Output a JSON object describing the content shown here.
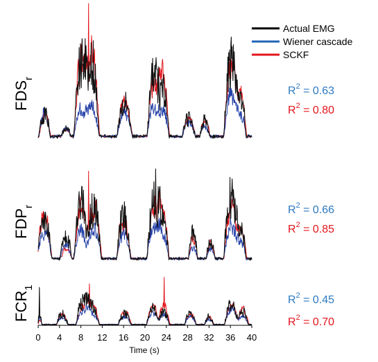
{
  "chart_data": {
    "type": "line",
    "xlabel": "Time (s)",
    "xlim": [
      0,
      40
    ],
    "xticks": [
      "0",
      "4",
      "8",
      "12",
      "16",
      "20",
      "24",
      "28",
      "32",
      "36",
      "40"
    ],
    "legend": {
      "placement": "top-right",
      "entries": [
        {
          "name": "Actual EMG",
          "color": "#000000"
        },
        {
          "name": "Wiener cascade",
          "color": "#1f63b8"
        },
        {
          "name": "SCKF",
          "color": "#e3141b"
        }
      ]
    },
    "panels": [
      {
        "muscle": "FDS",
        "sub": "r",
        "r2": [
          {
            "model": "Wiener cascade",
            "label": "R",
            "sup": "2",
            "text": " = 0.63",
            "color": "#2b79c2"
          },
          {
            "model": "SCKF",
            "label": "R",
            "sup": "2",
            "text": " = 0.80",
            "color": "#e3141b"
          }
        ],
        "ylim": [
          0,
          1
        ],
        "bursts": [
          {
            "center": 1.2,
            "width": 0.9,
            "actual": 0.16,
            "wiener": 0.17,
            "sckf": 0.15
          },
          {
            "center": 5.2,
            "width": 0.8,
            "actual": 0.06,
            "wiener": 0.06,
            "sckf": 0.05
          },
          {
            "center": 8.0,
            "width": 1.1,
            "actual": 0.58,
            "wiener": 0.2,
            "sckf": 0.55
          },
          {
            "center": 10.0,
            "width": 1.2,
            "actual": 0.55,
            "wiener": 0.22,
            "sckf": 0.6
          },
          {
            "center": 16.2,
            "width": 1.2,
            "actual": 0.25,
            "wiener": 0.18,
            "sckf": 0.25
          },
          {
            "center": 21.6,
            "width": 1.0,
            "actual": 0.45,
            "wiener": 0.22,
            "sckf": 0.42
          },
          {
            "center": 23.3,
            "width": 1.0,
            "actual": 0.35,
            "wiener": 0.2,
            "sckf": 0.5
          },
          {
            "center": 28.2,
            "width": 1.0,
            "actual": 0.14,
            "wiener": 0.1,
            "sckf": 0.12
          },
          {
            "center": 31.2,
            "width": 0.8,
            "actual": 0.11,
            "wiener": 0.08,
            "sckf": 0.12
          },
          {
            "center": 36.2,
            "width": 1.2,
            "actual": 0.55,
            "wiener": 0.3,
            "sckf": 0.5
          },
          {
            "center": 38.0,
            "width": 0.8,
            "actual": 0.25,
            "wiener": 0.15,
            "sckf": 0.3
          }
        ],
        "peaks": [
          {
            "x": 9.4,
            "series": "sckf",
            "y": 1.0
          },
          {
            "x": 8.2,
            "series": "actual",
            "y": 0.68
          },
          {
            "x": 22.1,
            "series": "actual",
            "y": 0.6
          },
          {
            "x": 36.3,
            "series": "actual",
            "y": 0.68
          }
        ]
      },
      {
        "muscle": "FDP",
        "sub": "r",
        "r2": [
          {
            "model": "Wiener cascade",
            "label": "R",
            "sup": "2",
            "text": " = 0.66",
            "color": "#2b79c2"
          },
          {
            "model": "SCKF",
            "label": "R",
            "sup": "2",
            "text": " = 0.85",
            "color": "#e3141b"
          }
        ],
        "ylim": [
          0,
          1
        ],
        "bursts": [
          {
            "center": 0.9,
            "width": 0.9,
            "actual": 0.3,
            "wiener": 0.2,
            "sckf": 0.35
          },
          {
            "center": 1.8,
            "width": 0.6,
            "actual": 0.22,
            "wiener": 0.15,
            "sckf": 0.2
          },
          {
            "center": 5.2,
            "width": 0.9,
            "actual": 0.22,
            "wiener": 0.12,
            "sckf": 0.08
          },
          {
            "center": 8.0,
            "width": 1.1,
            "actual": 0.5,
            "wiener": 0.25,
            "sckf": 0.45
          },
          {
            "center": 10.4,
            "width": 1.2,
            "actual": 0.45,
            "wiener": 0.28,
            "sckf": 0.48
          },
          {
            "center": 16.0,
            "width": 1.1,
            "actual": 0.38,
            "wiener": 0.22,
            "sckf": 0.36
          },
          {
            "center": 21.8,
            "width": 1.2,
            "actual": 0.5,
            "wiener": 0.3,
            "sckf": 0.45
          },
          {
            "center": 23.4,
            "width": 0.9,
            "actual": 0.35,
            "wiener": 0.2,
            "sckf": 0.4
          },
          {
            "center": 29.0,
            "width": 0.7,
            "actual": 0.22,
            "wiener": 0.1,
            "sckf": 0.18
          },
          {
            "center": 32.3,
            "width": 0.7,
            "actual": 0.14,
            "wiener": 0.08,
            "sckf": 0.13
          },
          {
            "center": 36.2,
            "width": 1.2,
            "actual": 0.55,
            "wiener": 0.3,
            "sckf": 0.45
          },
          {
            "center": 38.0,
            "width": 0.8,
            "actual": 0.25,
            "wiener": 0.15,
            "sckf": 0.3
          }
        ],
        "peaks": [
          {
            "x": 9.4,
            "series": "sckf",
            "y": 0.8
          },
          {
            "x": 22.0,
            "series": "actual",
            "y": 0.82
          },
          {
            "x": 36.4,
            "series": "actual",
            "y": 0.62
          }
        ]
      },
      {
        "muscle": "FCR",
        "sub": "1",
        "r2": [
          {
            "model": "Wiener cascade",
            "label": "R",
            "sup": "2",
            "text": " = 0.45",
            "color": "#2b79c2"
          },
          {
            "model": "SCKF",
            "label": "R",
            "sup": "2",
            "text": " = 0.70",
            "color": "#e3141b"
          }
        ],
        "ylim": [
          0,
          1
        ],
        "bursts": [
          {
            "center": 0.3,
            "width": 0.3,
            "actual": 0.2,
            "wiener": 0.12,
            "sckf": 0.1
          },
          {
            "center": 4.5,
            "width": 0.9,
            "actual": 0.22,
            "wiener": 0.15,
            "sckf": 0.2
          },
          {
            "center": 8.5,
            "width": 1.2,
            "actual": 0.45,
            "wiener": 0.25,
            "sckf": 0.35
          },
          {
            "center": 10.0,
            "width": 1.2,
            "actual": 0.35,
            "wiener": 0.22,
            "sckf": 0.4
          },
          {
            "center": 16.2,
            "width": 1.0,
            "actual": 0.22,
            "wiener": 0.15,
            "sckf": 0.25
          },
          {
            "center": 21.5,
            "width": 1.0,
            "actual": 0.3,
            "wiener": 0.22,
            "sckf": 0.35
          },
          {
            "center": 23.5,
            "width": 0.9,
            "actual": 0.25,
            "wiener": 0.2,
            "sckf": 0.4
          },
          {
            "center": 28.5,
            "width": 0.9,
            "actual": 0.22,
            "wiener": 0.15,
            "sckf": 0.2
          },
          {
            "center": 32.0,
            "width": 0.7,
            "actual": 0.16,
            "wiener": 0.1,
            "sckf": 0.15
          },
          {
            "center": 36.2,
            "width": 1.1,
            "actual": 0.4,
            "wiener": 0.3,
            "sckf": 0.38
          },
          {
            "center": 38.3,
            "width": 0.9,
            "actual": 0.25,
            "wiener": 0.15,
            "sckf": 0.3
          }
        ],
        "peaks": [
          {
            "x": 9.6,
            "series": "sckf",
            "y": 0.82
          },
          {
            "x": 23.6,
            "series": "sckf",
            "y": 0.95
          },
          {
            "x": 0.2,
            "series": "actual",
            "y": 0.75
          }
        ]
      }
    ]
  }
}
